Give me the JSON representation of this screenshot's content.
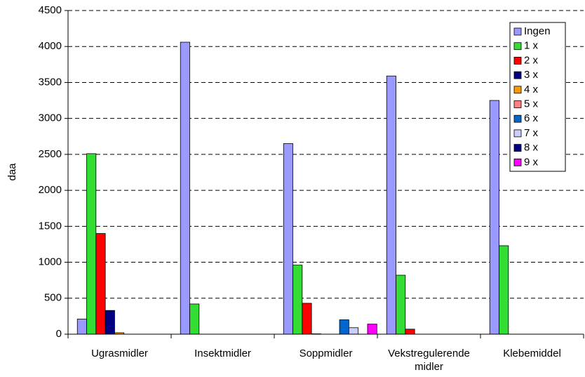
{
  "chart_data": {
    "type": "bar",
    "y_label": "daa",
    "categories": [
      "Ugrasmidler",
      "Insektmidler",
      "Soppmidler",
      "Vekstregulerende midler",
      "Klebemiddel"
    ],
    "series": [
      {
        "name": "Ingen",
        "color": "#9999ff",
        "values": [
          210,
          4060,
          2650,
          3590,
          3250
        ]
      },
      {
        "name": "1 x",
        "color": "#33dd33",
        "values": [
          2510,
          420,
          960,
          820,
          1230
        ]
      },
      {
        "name": "2 x",
        "color": "#ff0000",
        "values": [
          1400,
          0,
          430,
          70,
          0
        ]
      },
      {
        "name": "3 x",
        "color": "#000080",
        "values": [
          330,
          0,
          5,
          0,
          0
        ]
      },
      {
        "name": "4 x",
        "color": "#ff9900",
        "values": [
          20,
          0,
          0,
          0,
          0
        ]
      },
      {
        "name": "5 x",
        "color": "#ff8080",
        "values": [
          0,
          0,
          0,
          0,
          0
        ]
      },
      {
        "name": "6 x",
        "color": "#0066cc",
        "values": [
          0,
          0,
          200,
          0,
          0
        ]
      },
      {
        "name": "7 x",
        "color": "#ccccff",
        "values": [
          0,
          0,
          90,
          0,
          0
        ]
      },
      {
        "name": "8 x",
        "color": "#000080",
        "values": [
          0,
          0,
          0,
          0,
          0
        ]
      },
      {
        "name": "9 x",
        "color": "#ff00ff",
        "values": [
          0,
          0,
          140,
          0,
          0
        ]
      }
    ],
    "ylim": [
      0,
      4500
    ],
    "yticks": [
      0,
      500,
      1000,
      1500,
      2000,
      2500,
      3000,
      3500,
      4000,
      4500
    ],
    "grid": true,
    "legend": "top-right"
  }
}
